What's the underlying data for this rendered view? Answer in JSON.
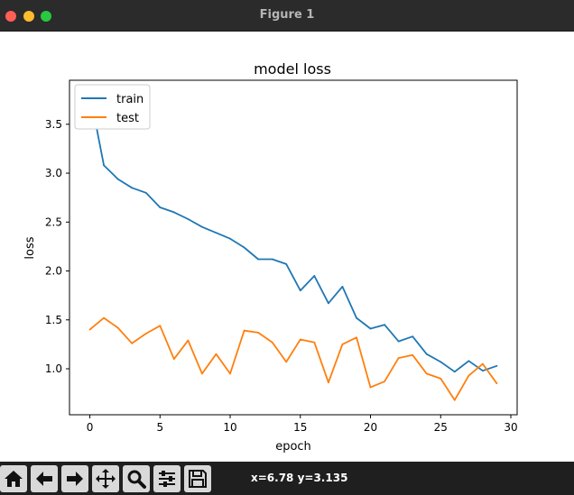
{
  "window": {
    "title": "Figure 1"
  },
  "chart_data": {
    "type": "line",
    "title": "model loss",
    "xlabel": "epoch",
    "ylabel": "loss",
    "xlim": [
      -1.45,
      30.45
    ],
    "ylim": [
      0.53,
      3.95
    ],
    "xticks": [
      0,
      5,
      10,
      15,
      20,
      25,
      30
    ],
    "xtick_labels": [
      "0",
      "5",
      "10",
      "15",
      "20",
      "25",
      "30"
    ],
    "yticks": [
      1.0,
      1.5,
      2.0,
      2.5,
      3.0,
      3.5
    ],
    "ytick_labels": [
      "1.0",
      "1.5",
      "2.0",
      "2.5",
      "3.0",
      "3.5"
    ],
    "grid": false,
    "legend_position": "upper-left",
    "x": [
      0,
      1,
      2,
      3,
      4,
      5,
      6,
      7,
      8,
      9,
      10,
      11,
      12,
      13,
      14,
      15,
      16,
      17,
      18,
      19,
      20,
      21,
      22,
      23,
      24,
      25,
      26,
      27,
      28,
      29
    ],
    "series": [
      {
        "name": "train",
        "color": "#1f77b4",
        "values": [
          3.82,
          3.08,
          2.94,
          2.85,
          2.8,
          2.65,
          2.6,
          2.53,
          2.45,
          2.39,
          2.33,
          2.24,
          2.12,
          2.12,
          2.07,
          1.8,
          1.95,
          1.67,
          1.84,
          1.52,
          1.41,
          1.45,
          1.28,
          1.33,
          1.15,
          1.07,
          0.97,
          1.08,
          0.98,
          1.03
        ]
      },
      {
        "name": "test",
        "color": "#ff7f0e",
        "values": [
          1.4,
          1.52,
          1.42,
          1.26,
          1.36,
          1.44,
          1.1,
          1.29,
          0.95,
          1.15,
          0.95,
          1.39,
          1.37,
          1.27,
          1.07,
          1.3,
          1.27,
          0.86,
          1.25,
          1.32,
          0.81,
          0.87,
          1.11,
          1.14,
          0.95,
          0.9,
          0.68,
          0.93,
          1.05,
          0.85
        ]
      }
    ]
  },
  "toolbar": {
    "buttons": [
      {
        "name": "home",
        "icon": "home-icon"
      },
      {
        "name": "back",
        "icon": "arrow-left-icon"
      },
      {
        "name": "forward",
        "icon": "arrow-right-icon"
      },
      {
        "name": "pan",
        "icon": "move-icon"
      },
      {
        "name": "zoom",
        "icon": "magnifier-icon"
      },
      {
        "name": "configure",
        "icon": "sliders-icon"
      },
      {
        "name": "save",
        "icon": "save-icon"
      }
    ],
    "coordinates": "x=6.78 y=3.135"
  }
}
